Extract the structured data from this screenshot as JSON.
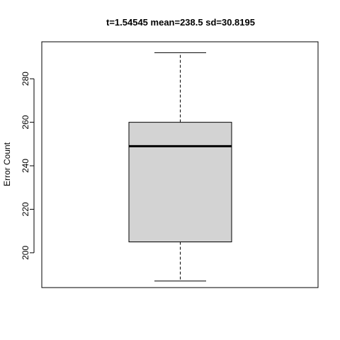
{
  "chart_data": {
    "type": "boxplot",
    "title": "t=1.54545 mean=238.5 sd=30.8195",
    "xlabel": "",
    "ylabel": "Error Count",
    "ylim": [
      184,
      297
    ],
    "yticks": [
      200,
      220,
      240,
      260,
      280
    ],
    "box": {
      "min": 187,
      "q1": 205,
      "median": 249,
      "q3": 260,
      "max": 292
    },
    "box_fill": "#d3d3d3",
    "grid": false
  }
}
